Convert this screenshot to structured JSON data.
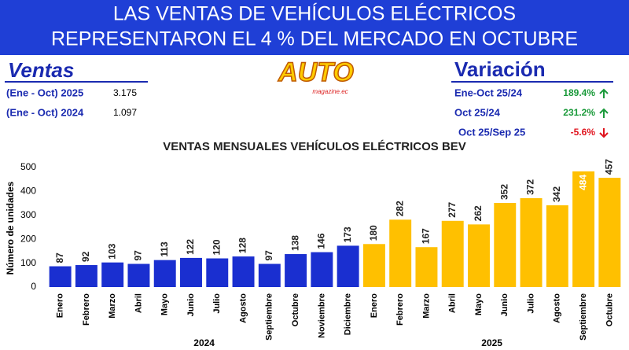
{
  "header": {
    "title_lines": [
      "LAS VENTAS DE VEHÍCULOS ELÉCTRICOS",
      "REPRESENTARON EL 4 % DEL MERCADO EN OCTUBRE"
    ]
  },
  "sales": {
    "title": "Ventas",
    "rows": [
      {
        "label": "(Ene - Oct) 2025",
        "value": "3.175"
      },
      {
        "label": "(Ene - Oct) 2024",
        "value": "1.097"
      }
    ]
  },
  "logo": {
    "name": "AUTO",
    "sub": "magazine.ec"
  },
  "variation": {
    "title": "Variación",
    "rows": [
      {
        "label": "Ene-Oct 25/24",
        "value": "189.4%",
        "direction": "up"
      },
      {
        "label": "Oct 25/24",
        "value": "231.2%",
        "direction": "up"
      },
      {
        "label": "Oct 25/Sep 25",
        "value": "-5.6%",
        "direction": "down"
      }
    ]
  },
  "chart_data": {
    "type": "bar",
    "title": "VENTAS MENSUALES VEHÍCULOS ELÉCTRICOS BEV",
    "y_label": "Número de unidades",
    "categories": [
      "Enero",
      "Febrero",
      "Marzo",
      "Abril",
      "Mayo",
      "Junio",
      "Julio",
      "Agosto",
      "Septiembre",
      "Octubre",
      "Noviembre",
      "Diciembre",
      "Enero",
      "Febrero",
      "Marzo",
      "Abril",
      "Mayo",
      "Junio",
      "Julio",
      "Agosto",
      "Septiembre",
      "Octubre"
    ],
    "series": [
      {
        "name": "2024",
        "color": "#1a2fd0",
        "values": [
          87,
          92,
          103,
          97,
          113,
          122,
          120,
          128,
          97,
          138,
          146,
          173,
          null,
          null,
          null,
          null,
          null,
          null,
          null,
          null,
          null,
          null
        ]
      },
      {
        "name": "2025",
        "color": "#ffc000",
        "values": [
          null,
          null,
          null,
          null,
          null,
          null,
          null,
          null,
          null,
          null,
          null,
          null,
          180,
          282,
          167,
          277,
          262,
          352,
          372,
          342,
          484,
          457
        ]
      }
    ],
    "ylim": [
      0,
      520
    ],
    "yticks": [
      0,
      100,
      200,
      300,
      400,
      500
    ],
    "grid": false
  }
}
